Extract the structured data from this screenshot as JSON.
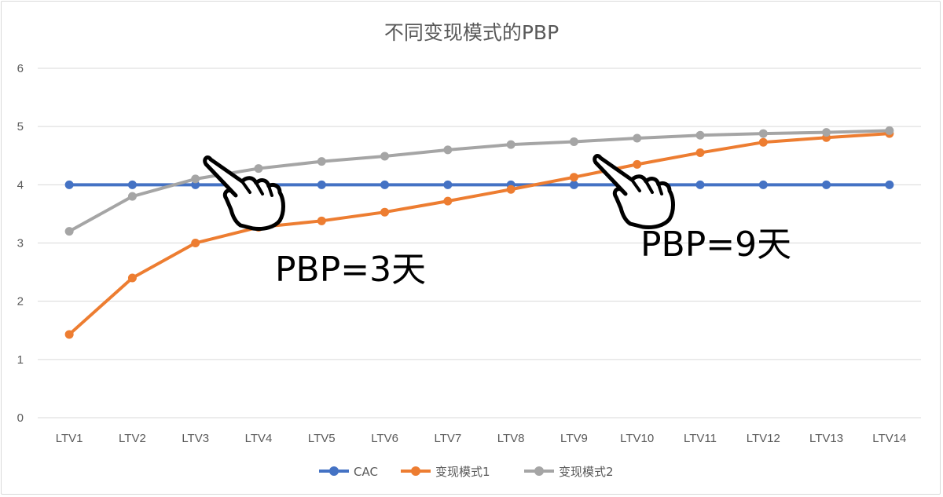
{
  "chart_data": {
    "type": "line",
    "title": "不同变现模式的PBP",
    "categories": [
      "LTV1",
      "LTV2",
      "LTV3",
      "LTV4",
      "LTV5",
      "LTV6",
      "LTV7",
      "LTV8",
      "LTV9",
      "LTV10",
      "LTV11",
      "LTV12",
      "LTV13",
      "LTV14"
    ],
    "ylim": [
      0,
      6
    ],
    "yticks": [
      "0",
      "1",
      "2",
      "3",
      "4",
      "5",
      "6"
    ],
    "grid": true,
    "legend_position": "bottom",
    "series": [
      {
        "name": "CAC",
        "color": "#4472c4",
        "values": [
          4,
          4,
          4,
          4,
          4,
          4,
          4,
          4,
          4,
          4,
          4,
          4,
          4,
          4
        ]
      },
      {
        "name": "变现模式1",
        "color": "#ed7d31",
        "values": [
          1.43,
          2.4,
          3.0,
          3.27,
          3.38,
          3.53,
          3.72,
          3.92,
          4.13,
          4.35,
          4.55,
          4.73,
          4.81,
          4.88
        ]
      },
      {
        "name": "变现模式2",
        "color": "#a5a5a5",
        "values": [
          3.2,
          3.8,
          4.1,
          4.28,
          4.4,
          4.49,
          4.6,
          4.69,
          4.74,
          4.8,
          4.85,
          4.88,
          4.9,
          4.93
        ]
      }
    ],
    "annotations": [
      {
        "text": "PBP=3天",
        "icon": "pointing-hand-icon"
      },
      {
        "text": "PBP=9天",
        "icon": "pointing-hand-icon"
      }
    ]
  }
}
